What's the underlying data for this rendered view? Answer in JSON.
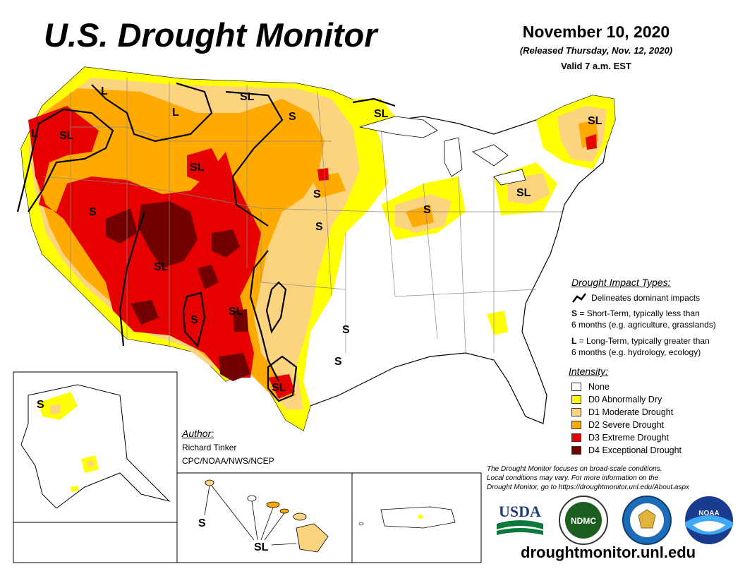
{
  "header": {
    "title": "U.S. Drought Monitor",
    "date": "November 10, 2020",
    "released": "(Released Thursday, Nov. 12, 2020)",
    "valid": "Valid 7 a.m. EST"
  },
  "map": {
    "region_labels": [
      "L",
      "L",
      "L",
      "SL",
      "SL",
      "S",
      "SL",
      "SL",
      "SL",
      "S",
      "S",
      "SL",
      "SL",
      "S",
      "S",
      "S",
      "SL",
      "S",
      "S",
      "SL"
    ],
    "alaska_label": "S",
    "hawaii_labels": [
      "S",
      "SL"
    ],
    "colors": {
      "none": "#ffffff",
      "d0": "#ffff00",
      "d1": "#fcd37f",
      "d2": "#ffaa00",
      "d3": "#e60000",
      "d4": "#730000"
    }
  },
  "impact_legend": {
    "title": "Drought Impact Types:",
    "line_label": "Delineates dominant impacts",
    "s_key": "S",
    "s_desc": "= Short-Term, typically less than",
    "s_desc2": "6 months (e.g. agriculture, grasslands)",
    "l_key": "L",
    "l_desc": "= Long-Term, typically greater than",
    "l_desc2": "6 months (e.g. hydrology, ecology)"
  },
  "intensity_legend": {
    "title": "Intensity:",
    "items": [
      {
        "label": "None",
        "color": "#ffffff"
      },
      {
        "label": "D0 Abnormally Dry",
        "color": "#ffff00"
      },
      {
        "label": "D1 Moderate Drought",
        "color": "#fcd37f"
      },
      {
        "label": "D2 Severe Drought",
        "color": "#ffaa00"
      },
      {
        "label": "D3 Extreme Drought",
        "color": "#e60000"
      },
      {
        "label": "D4 Exceptional Drought",
        "color": "#730000"
      }
    ]
  },
  "author": {
    "title": "Author:",
    "name": "Richard Tinker",
    "org": "CPC/NOAA/NWS/NCEP"
  },
  "disclaimer": {
    "line1": "The Drought Monitor focuses on broad-scale conditions.",
    "line2": "Local conditions may vary. For more information on the",
    "line3": "Drought Monitor, go to https://droughtmonitor.unl.edu/About.aspx"
  },
  "logos": {
    "usda": "USDA",
    "ndmc": "NDMC",
    "noaa": "NOAA"
  },
  "footer": {
    "url": "droughtmonitor.unl.edu"
  }
}
